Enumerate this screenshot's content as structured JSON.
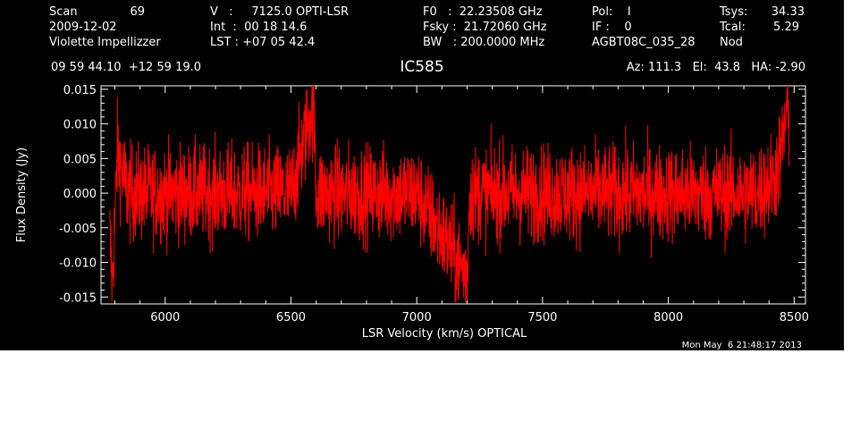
{
  "header": {
    "col1": {
      "scan_label": "Scan",
      "scan_value": "69",
      "date": "2009-12-02",
      "observer": "Violette Impellizzer"
    },
    "col2": {
      "v_line": "V   :     7125.0 OPTI-LSR",
      "int_line": "Int  :  00 18 14.6",
      "lst_line": "LST : +07 05 42.4"
    },
    "col3": {
      "f0_line": "F0   :  22.23508 GHz",
      "fsky_line": "Fsky :  21.72060 GHz",
      "bw_line": "BW   : 200.0000 MHz"
    },
    "col4": {
      "pol_line": "Pol:    I",
      "if_line": "IF :    0",
      "proj": "AGBT08C_035_28"
    },
    "col5": {
      "tsys_label": "Tsys:",
      "tsys_value": "34.33",
      "tcal_label": "Tcal:",
      "tcal_value": "5.29",
      "mode": "Nod"
    },
    "coords": "09 59 44.10  +12 59 19.0",
    "source": "IC585",
    "azel": "Az: 111.3   El:  43.8   HA: -2.90"
  },
  "footer": {
    "timestamp": "Mon May  6 21:48:17 2013"
  },
  "chart_data": {
    "type": "line",
    "xlabel": "LSR Velocity (km/s) OPTICAL",
    "ylabel": "Flux Density (Jy)",
    "xlim": [
      5745,
      8545
    ],
    "ylim": [
      -0.016,
      0.0155
    ],
    "xticks": [
      6000,
      6500,
      7000,
      7500,
      8000,
      8500
    ],
    "xtick_labels": [
      "6000",
      "6500",
      "7000",
      "7500",
      "8000",
      "8500"
    ],
    "yticks": [
      -0.015,
      -0.01,
      -0.005,
      0.0,
      0.005,
      0.01,
      0.015
    ],
    "ytick_labels": [
      "-0.015",
      "-0.010",
      "-0.005",
      "0.000",
      "0.005",
      "0.010",
      "0.015"
    ],
    "grid": false,
    "series": [
      {
        "color": "#ff0000",
        "noise_rms": 0.0035,
        "points": [
          [
            5780,
            -0.006
          ],
          [
            5790,
            -0.013
          ],
          [
            5800,
            -0.004
          ],
          [
            5810,
            0.006
          ],
          [
            5850,
            0.0
          ],
          [
            5900,
            0.0
          ],
          [
            5950,
            0.0
          ],
          [
            6000,
            0.0
          ],
          [
            6200,
            0.0
          ],
          [
            6500,
            0.0
          ],
          [
            6590,
            0.013
          ],
          [
            6600,
            0.0
          ],
          [
            7000,
            0.0
          ],
          [
            7200,
            -0.012
          ],
          [
            7210,
            0.0
          ],
          [
            7500,
            0.0
          ],
          [
            8000,
            0.0
          ],
          [
            8350,
            0.0
          ],
          [
            8420,
            0.002
          ],
          [
            8450,
            0.006
          ],
          [
            8470,
            0.012
          ],
          [
            8480,
            0.01
          ]
        ]
      }
    ]
  }
}
